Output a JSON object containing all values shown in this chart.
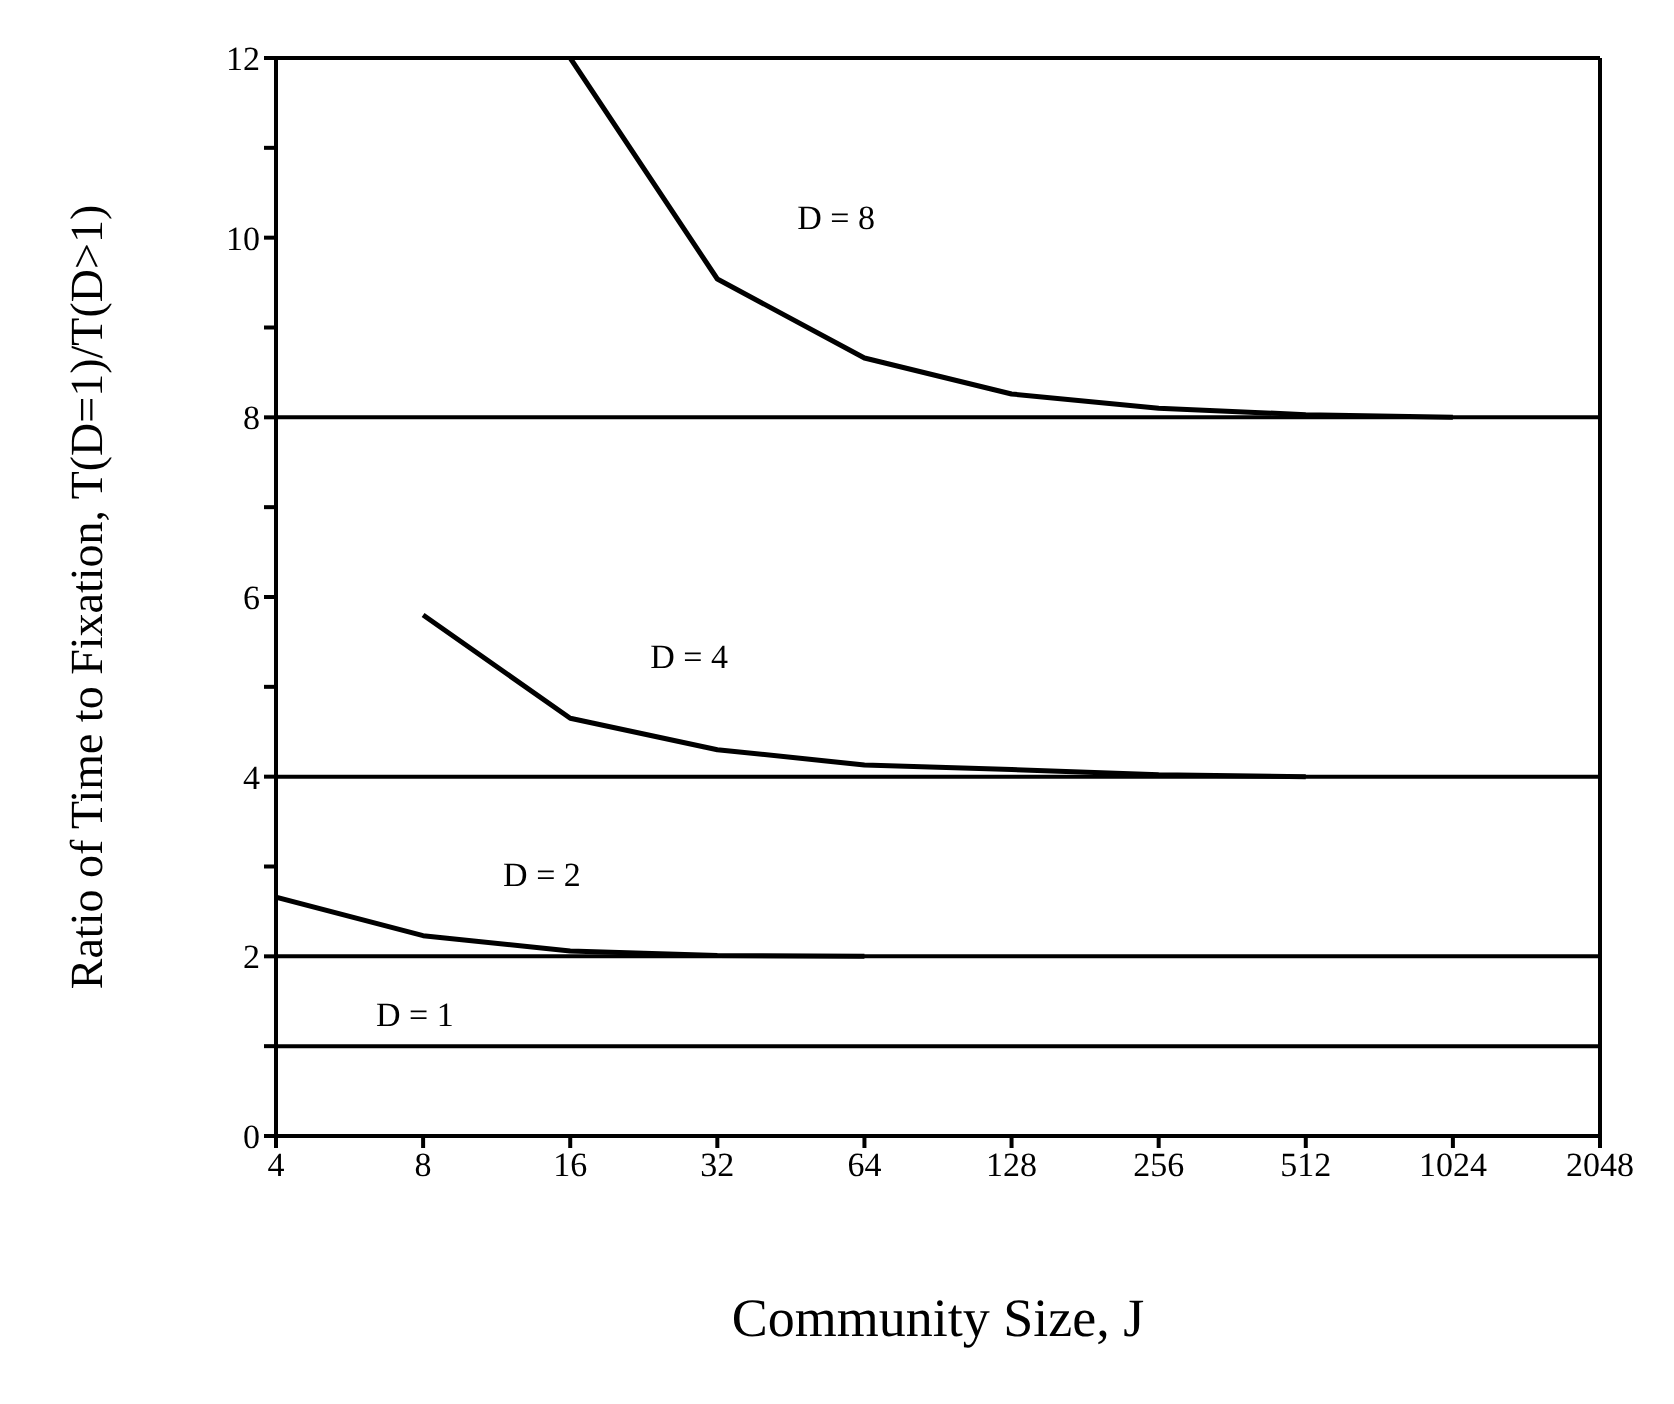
{
  "chart_data": {
    "type": "line",
    "xlabel": "Community Size, J",
    "ylabel": "Ratio of Time to Fixation, T(D=1)/T(D>1)",
    "log": "x",
    "xlim": [
      4,
      2048
    ],
    "xticks": [
      4,
      8,
      16,
      32,
      64,
      128,
      256,
      512,
      1024,
      2048
    ],
    "ylim": [
      0,
      12
    ],
    "yticks": [
      0,
      {
        "value": 1,
        "label": null
      },
      2,
      {
        "value": 3,
        "label": null
      },
      4,
      {
        "value": 5,
        "label": null
      },
      6,
      {
        "value": 7,
        "label": null
      },
      8,
      {
        "value": 9,
        "label": null
      },
      10,
      {
        "value": 11,
        "label": null
      },
      12
    ],
    "marker": "none",
    "line_style": "solid",
    "series": [
      {
        "name": "D = 8",
        "color": "#000000",
        "x": [
          16,
          32,
          64,
          128,
          256,
          512,
          1024
        ],
        "values": [
          12,
          9.54,
          8.66,
          8.26,
          8.1,
          8.03,
          8.0
        ]
      },
      {
        "name": "D = 4",
        "color": "#000000",
        "x": [
          8,
          16,
          32,
          64,
          128,
          256,
          512
        ],
        "values": [
          5.8,
          4.65,
          4.3,
          4.13,
          4.08,
          4.02,
          4.0
        ]
      },
      {
        "name": "D = 2",
        "color": "#000000",
        "x": [
          4,
          8,
          16,
          32,
          64
        ],
        "values": [
          2.66,
          2.23,
          2.06,
          2.01,
          2.0
        ]
      }
    ],
    "ref_lines": [
      {
        "axis": "y",
        "value": 8,
        "label": null,
        "color": "#000000"
      },
      {
        "axis": "y",
        "value": 4,
        "label": null,
        "color": "#000000"
      },
      {
        "axis": "y",
        "value": 2,
        "label": null,
        "color": "#000000"
      },
      {
        "axis": "y",
        "value": 1,
        "label": "D = 1",
        "color": "#000000"
      }
    ]
  }
}
